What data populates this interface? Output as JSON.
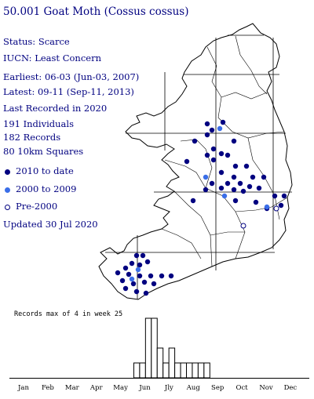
{
  "species": {
    "title": "50.001 Goat Moth (Cossus cossus)",
    "status": "Status: Scarce",
    "iucn": "IUCN: Least Concern",
    "earliest": "Earliest: 06-03 (Jun-03, 2007)",
    "latest": "Latest: 09-11 (Sep-11, 2013)",
    "last_recorded": "Last Recorded in 2020",
    "individuals": "191 Individuals",
    "records": "182 Records",
    "squares": "80 10km Squares",
    "updated": "Updated 30 Jul 2020"
  },
  "legend": [
    {
      "label": "2010 to date",
      "color": "#000080"
    },
    {
      "label": "2000 to 2009",
      "color": "#3a6ee8"
    },
    {
      "label": "Pre-2000",
      "color": "#ffffff"
    }
  ],
  "histogram": {
    "caption": "Records max of 4 in week 25",
    "max": 4,
    "weeks": [
      {
        "week": 22,
        "value": 1
      },
      {
        "week": 23,
        "value": 1
      },
      {
        "week": 24,
        "value": 4
      },
      {
        "week": 25,
        "value": 4
      },
      {
        "week": 26,
        "value": 2
      },
      {
        "week": 27,
        "value": 1
      },
      {
        "week": 28,
        "value": 2
      },
      {
        "week": 29,
        "value": 1
      },
      {
        "week": 30,
        "value": 1
      },
      {
        "week": 31,
        "value": 1
      },
      {
        "week": 32,
        "value": 1
      },
      {
        "week": 33,
        "value": 1
      },
      {
        "week": 34,
        "value": 1
      }
    ],
    "months": [
      "Jan",
      "Feb",
      "Mar",
      "Apr",
      "May",
      "Jun",
      "Jly",
      "Aug",
      "Sep",
      "Oct",
      "Nov",
      "Dec"
    ]
  }
}
